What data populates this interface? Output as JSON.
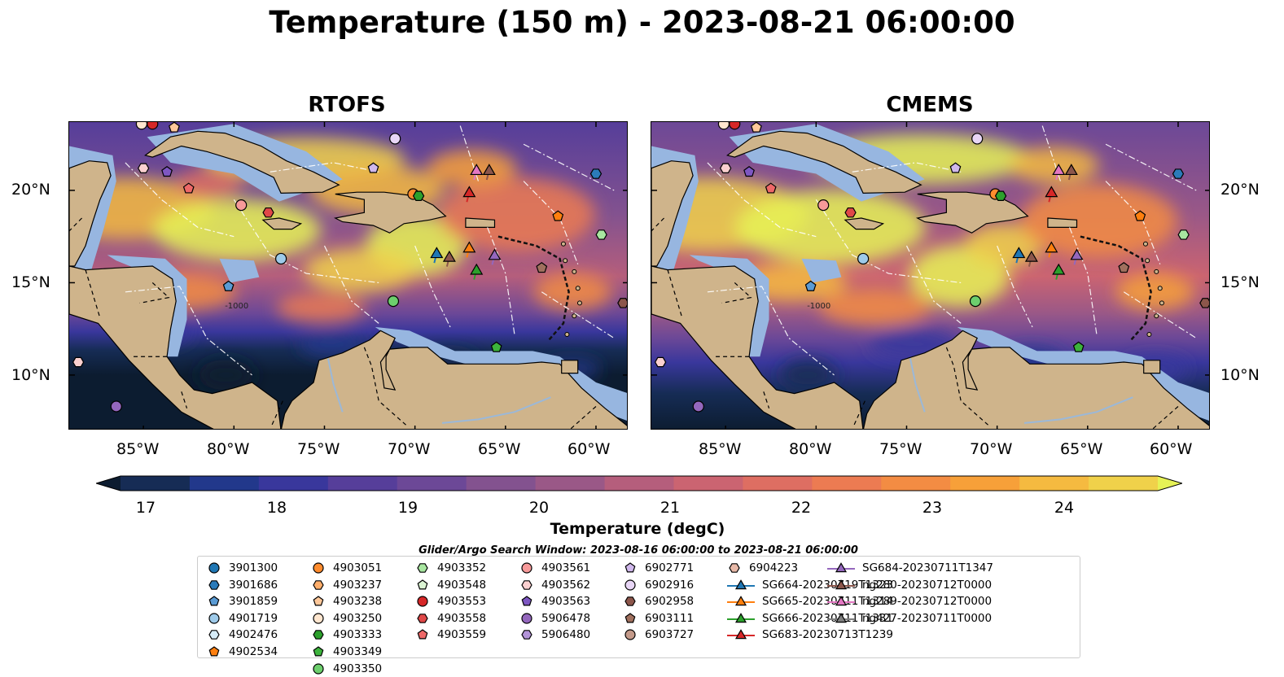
{
  "title": "Temperature (150 m) - 2023-08-21 06:00:00",
  "panels": [
    {
      "id": "rtofs",
      "title": "RTOFS"
    },
    {
      "id": "cmems",
      "title": "CMEMS"
    }
  ],
  "lat_ticks": [
    "20°N",
    "15°N",
    "10°N"
  ],
  "lon_ticks": [
    "85°W",
    "80°W",
    "75°W",
    "70°W",
    "65°W",
    "60°W"
  ],
  "contour_label": "-1000",
  "colors": {
    "ocean": "#97b6e0",
    "land": "#cfb48b",
    "palette": [
      "#0c1c30",
      "#162c55",
      "#22388b",
      "#39379c",
      "#563e9a",
      "#6c4897",
      "#83528f",
      "#9a5887",
      "#b55e7c",
      "#cb6471",
      "#de6e62",
      "#ec7b52",
      "#f38c43",
      "#f7a039",
      "#f5ba40",
      "#f0d14a",
      "#e6f256"
    ]
  },
  "colorbar": {
    "label": "Temperature (degC)",
    "min": 17,
    "max": 24.5,
    "ticks": [
      "17",
      "18",
      "19",
      "20",
      "21",
      "22",
      "23",
      "24"
    ]
  },
  "search_window": "Glider/Argo Search Window: 2023-08-16 06:00:00 to 2023-08-21 06:00:00",
  "legend": [
    {
      "label": "3901300",
      "marker": "circle",
      "color": "#1f77b4"
    },
    {
      "label": "3901686",
      "marker": "hexagon",
      "color": "#2b7bba"
    },
    {
      "label": "3901859",
      "marker": "pentagon",
      "color": "#5a9bd4"
    },
    {
      "label": "4901719",
      "marker": "circle",
      "color": "#9ecae9"
    },
    {
      "label": "4902476",
      "marker": "hexagon",
      "color": "#d6ecf8"
    },
    {
      "label": "4902534",
      "marker": "pentagon",
      "color": "#ff7f0e"
    },
    {
      "label": "4903051",
      "marker": "circle",
      "color": "#ff8c2e"
    },
    {
      "label": "4903237",
      "marker": "hexagon",
      "color": "#ffae6b"
    },
    {
      "label": "4903238",
      "marker": "pentagon",
      "color": "#ffc89a"
    },
    {
      "label": "4903250",
      "marker": "circle",
      "color": "#ffe6cf"
    },
    {
      "label": "4903333",
      "marker": "hexagon",
      "color": "#2ca02c"
    },
    {
      "label": "4903349",
      "marker": "pentagon",
      "color": "#3cb33c"
    },
    {
      "label": "4903350",
      "marker": "circle",
      "color": "#6dcf6d"
    },
    {
      "label": "4903352",
      "marker": "hexagon",
      "color": "#a8e6a0"
    },
    {
      "label": "4903548",
      "marker": "pentagon",
      "color": "#dcf5d4"
    },
    {
      "label": "4903553",
      "marker": "circle",
      "color": "#d62728"
    },
    {
      "label": "4903558",
      "marker": "hexagon",
      "color": "#e04848"
    },
    {
      "label": "4903559",
      "marker": "pentagon",
      "color": "#ee6868"
    },
    {
      "label": "4903561",
      "marker": "circle",
      "color": "#f79a9a"
    },
    {
      "label": "4903562",
      "marker": "hexagon",
      "color": "#fbd0d0"
    },
    {
      "label": "4903563",
      "marker": "pentagon",
      "color": "#7e57c2"
    },
    {
      "label": "5906478",
      "marker": "circle",
      "color": "#9467bd"
    },
    {
      "label": "5906480",
      "marker": "hexagon",
      "color": "#b394d8"
    },
    {
      "label": "6902771",
      "marker": "pentagon",
      "color": "#d0b8ec"
    },
    {
      "label": "6902916",
      "marker": "circle",
      "color": "#e8d6f6"
    },
    {
      "label": "6902958",
      "marker": "hexagon",
      "color": "#8c564b"
    },
    {
      "label": "6903111",
      "marker": "pentagon",
      "color": "#a0705e"
    },
    {
      "label": "6903727",
      "marker": "circle",
      "color": "#c49a8a"
    },
    {
      "label": "6904223",
      "marker": "hexagon",
      "color": "#e8b9a8"
    },
    {
      "label": "SG664-20230719T1323",
      "marker": "triangle",
      "color": "#1f77b4"
    },
    {
      "label": "SG665-20230711T1314",
      "marker": "triangle",
      "color": "#ff7f0e"
    },
    {
      "label": "SG666-20230711T1331",
      "marker": "triangle",
      "color": "#2ca02c"
    },
    {
      "label": "SG683-20230713T1239",
      "marker": "triangle",
      "color": "#d62728"
    },
    {
      "label": "SG684-20230711T1347",
      "marker": "triangle",
      "color": "#9467bd"
    },
    {
      "label": "ng280-20230712T0000",
      "marker": "triangle",
      "color": "#8c564b"
    },
    {
      "label": "ng289-20230712T0000",
      "marker": "triangle",
      "color": "#e377c2"
    },
    {
      "label": "ng427-20230711T0000",
      "marker": "triangle",
      "color": "#7f7f7f"
    }
  ]
}
